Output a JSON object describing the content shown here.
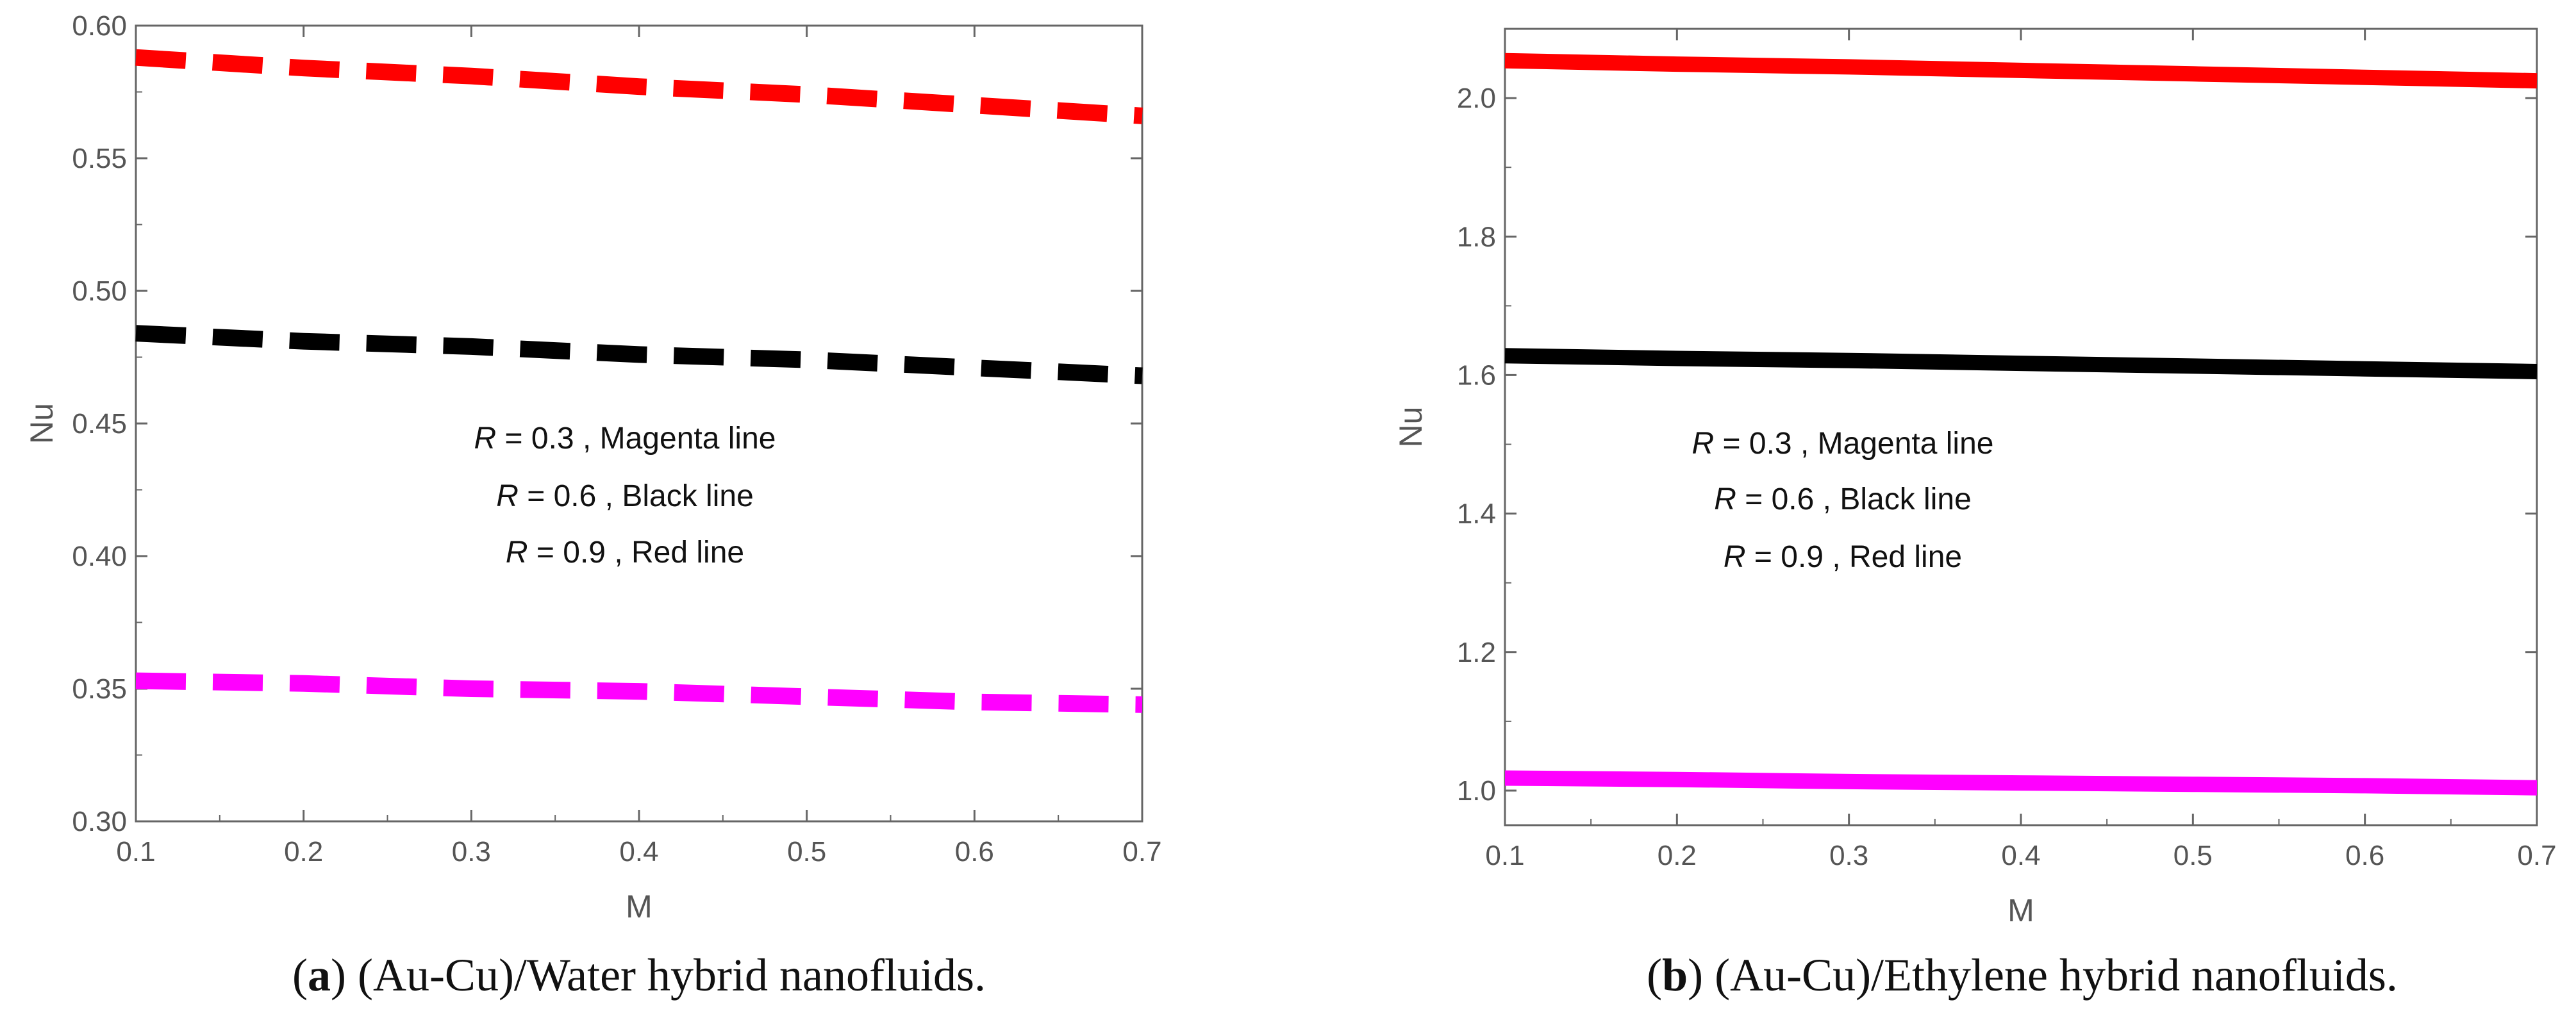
{
  "chart_data": [
    {
      "type": "line",
      "panel_id": "a",
      "caption_prefix": "(",
      "caption_letter": "a",
      "caption_text": ") (Au-Cu)/Water hybrid nanofluids.",
      "xlabel": "M",
      "ylabel": "Nu",
      "xlim": [
        0.1,
        0.7
      ],
      "ylim": [
        0.3,
        0.6
      ],
      "xticks": [
        0.1,
        0.2,
        0.3,
        0.4,
        0.5,
        0.6,
        0.7
      ],
      "yticks": [
        0.3,
        0.35,
        0.4,
        0.45,
        0.5,
        0.55,
        0.6
      ],
      "xtick_labels": [
        "0.1",
        "0.2",
        "0.3",
        "0.4",
        "0.5",
        "0.6",
        "0.7"
      ],
      "ytick_labels": [
        "0.30",
        "0.35",
        "0.40",
        "0.45",
        "0.50",
        "0.55",
        "0.60"
      ],
      "line_style": "dashed",
      "x": [
        0.1,
        0.2,
        0.3,
        0.4,
        0.5,
        0.6,
        0.7
      ],
      "series": [
        {
          "name": "R = 0.3, Magenta line",
          "color": "#ff00ff",
          "values": [
            0.353,
            0.352,
            0.35,
            0.349,
            0.347,
            0.345,
            0.344
          ]
        },
        {
          "name": "R = 0.6, Black line",
          "color": "#000000",
          "values": [
            0.484,
            0.481,
            0.479,
            0.476,
            0.474,
            0.471,
            0.468
          ]
        },
        {
          "name": "R = 0.9, Red line",
          "color": "#ff0000",
          "values": [
            0.588,
            0.584,
            0.581,
            0.577,
            0.574,
            0.57,
            0.566
          ]
        }
      ],
      "annotation": [
        {
          "var": "R",
          "text": " = 0.3 , Magenta  line"
        },
        {
          "var": "R",
          "text": " = 0.6 , Black  line"
        },
        {
          "var": "R",
          "text": " = 0.9 , Red  line"
        }
      ]
    },
    {
      "type": "line",
      "panel_id": "b",
      "caption_prefix": "(",
      "caption_letter": "b",
      "caption_text": ") (Au-Cu)/Ethylene hybrid nanofluids.",
      "xlabel": "M",
      "ylabel": "Nu",
      "xlim": [
        0.1,
        0.7
      ],
      "ylim": [
        0.95,
        2.1
      ],
      "xticks": [
        0.1,
        0.2,
        0.3,
        0.4,
        0.5,
        0.6,
        0.7
      ],
      "yticks": [
        1.0,
        1.2,
        1.4,
        1.6,
        1.8,
        2.0
      ],
      "xtick_labels": [
        "0.1",
        "0.2",
        "0.3",
        "0.4",
        "0.5",
        "0.6",
        "0.7"
      ],
      "ytick_labels": [
        "1.0",
        "1.2",
        "1.4",
        "1.6",
        "1.8",
        "2.0"
      ],
      "line_style": "solid",
      "x": [
        0.1,
        0.2,
        0.3,
        0.4,
        0.5,
        0.6,
        0.7
      ],
      "series": [
        {
          "name": "R = 0.3, Magenta line",
          "color": "#ff00ff",
          "values": [
            1.018,
            1.016,
            1.013,
            1.011,
            1.009,
            1.007,
            1.004
          ]
        },
        {
          "name": "R = 0.6, Black line",
          "color": "#000000",
          "values": [
            1.628,
            1.624,
            1.621,
            1.617,
            1.613,
            1.609,
            1.605
          ]
        },
        {
          "name": "R = 0.9, Red line",
          "color": "#ff0000",
          "values": [
            2.054,
            2.049,
            2.045,
            2.04,
            2.035,
            2.03,
            2.025
          ]
        }
      ],
      "annotation": [
        {
          "var": "R",
          "text": " = 0.3 , Magenta  line"
        },
        {
          "var": "R",
          "text": " = 0.6 , Black  line"
        },
        {
          "var": "R",
          "text": " = 0.9 , Red  line"
        }
      ]
    }
  ]
}
